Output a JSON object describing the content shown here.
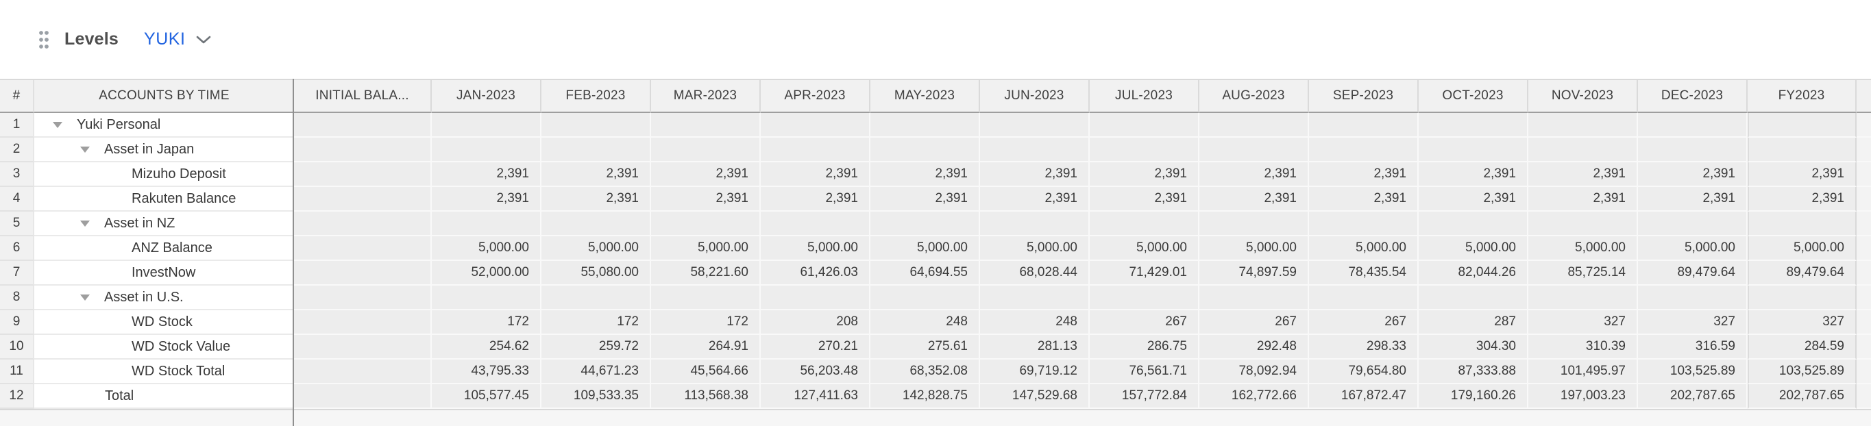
{
  "toolbar": {
    "title": "Levels",
    "view_selector": "YUKI"
  },
  "colors": {
    "accent_blue": "#2264e0",
    "cell_gray": "#ededed",
    "header_gray": "#f1f1f1",
    "divider_dark": "#8f8f8f"
  },
  "table": {
    "row_number_header": "#",
    "name_header": "ACCOUNTS BY TIME",
    "value_columns": [
      "INITIAL BALA...",
      "JAN-2023",
      "FEB-2023",
      "MAR-2023",
      "APR-2023",
      "MAY-2023",
      "JUN-2023",
      "JUL-2023",
      "AUG-2023",
      "SEP-2023",
      "OCT-2023",
      "NOV-2023",
      "DEC-2023",
      "FY2023"
    ],
    "rows": [
      {
        "num": "1",
        "label": "Yuki Personal",
        "level": "lvl1",
        "collapsible": true,
        "values": [
          "",
          "",
          "",
          "",
          "",
          "",
          "",
          "",
          "",
          "",
          "",
          "",
          "",
          ""
        ]
      },
      {
        "num": "2",
        "label": "Asset in Japan",
        "level": "lvl2",
        "collapsible": true,
        "values": [
          "",
          "",
          "",
          "",
          "",
          "",
          "",
          "",
          "",
          "",
          "",
          "",
          "",
          ""
        ]
      },
      {
        "num": "3",
        "label": "Mizuho Deposit",
        "level": "lvl3",
        "collapsible": false,
        "values": [
          "",
          "2,391",
          "2,391",
          "2,391",
          "2,391",
          "2,391",
          "2,391",
          "2,391",
          "2,391",
          "2,391",
          "2,391",
          "2,391",
          "2,391",
          "2,391"
        ]
      },
      {
        "num": "4",
        "label": "Rakuten Balance",
        "level": "lvl3",
        "collapsible": false,
        "values": [
          "",
          "2,391",
          "2,391",
          "2,391",
          "2,391",
          "2,391",
          "2,391",
          "2,391",
          "2,391",
          "2,391",
          "2,391",
          "2,391",
          "2,391",
          "2,391"
        ]
      },
      {
        "num": "5",
        "label": "Asset in NZ",
        "level": "lvl2",
        "collapsible": true,
        "values": [
          "",
          "",
          "",
          "",
          "",
          "",
          "",
          "",
          "",
          "",
          "",
          "",
          "",
          ""
        ]
      },
      {
        "num": "6",
        "label": "ANZ Balance",
        "level": "lvl3",
        "collapsible": false,
        "values": [
          "",
          "5,000.00",
          "5,000.00",
          "5,000.00",
          "5,000.00",
          "5,000.00",
          "5,000.00",
          "5,000.00",
          "5,000.00",
          "5,000.00",
          "5,000.00",
          "5,000.00",
          "5,000.00",
          "5,000.00"
        ]
      },
      {
        "num": "7",
        "label": "InvestNow",
        "level": "lvl3",
        "collapsible": false,
        "values": [
          "",
          "52,000.00",
          "55,080.00",
          "58,221.60",
          "61,426.03",
          "64,694.55",
          "68,028.44",
          "71,429.01",
          "74,897.59",
          "78,435.54",
          "82,044.26",
          "85,725.14",
          "89,479.64",
          "89,479.64"
        ]
      },
      {
        "num": "8",
        "label": "Asset in U.S.",
        "level": "lvl2",
        "collapsible": true,
        "values": [
          "",
          "",
          "",
          "",
          "",
          "",
          "",
          "",
          "",
          "",
          "",
          "",
          "",
          ""
        ]
      },
      {
        "num": "9",
        "label": "WD Stock",
        "level": "lvl3",
        "collapsible": false,
        "values": [
          "",
          "172",
          "172",
          "172",
          "208",
          "248",
          "248",
          "267",
          "267",
          "267",
          "287",
          "327",
          "327",
          "327"
        ]
      },
      {
        "num": "10",
        "label": "WD Stock Value",
        "level": "lvl3",
        "collapsible": false,
        "values": [
          "",
          "254.62",
          "259.72",
          "264.91",
          "270.21",
          "275.61",
          "281.13",
          "286.75",
          "292.48",
          "298.33",
          "304.30",
          "310.39",
          "316.59",
          "284.59"
        ]
      },
      {
        "num": "11",
        "label": "WD Stock Total",
        "level": "lvl3",
        "collapsible": false,
        "values": [
          "",
          "43,795.33",
          "44,671.23",
          "45,564.66",
          "56,203.48",
          "68,352.08",
          "69,719.12",
          "76,561.71",
          "78,092.94",
          "79,654.80",
          "87,333.88",
          "101,495.97",
          "103,525.89",
          "103,525.89"
        ]
      },
      {
        "num": "12",
        "label": "Total",
        "level": "total",
        "collapsible": false,
        "values": [
          "",
          "105,577.45",
          "109,533.35",
          "113,568.38",
          "127,411.63",
          "142,828.75",
          "147,529.68",
          "157,772.84",
          "162,772.66",
          "167,872.47",
          "179,160.26",
          "197,003.23",
          "202,787.65",
          "202,787.65"
        ]
      }
    ]
  }
}
